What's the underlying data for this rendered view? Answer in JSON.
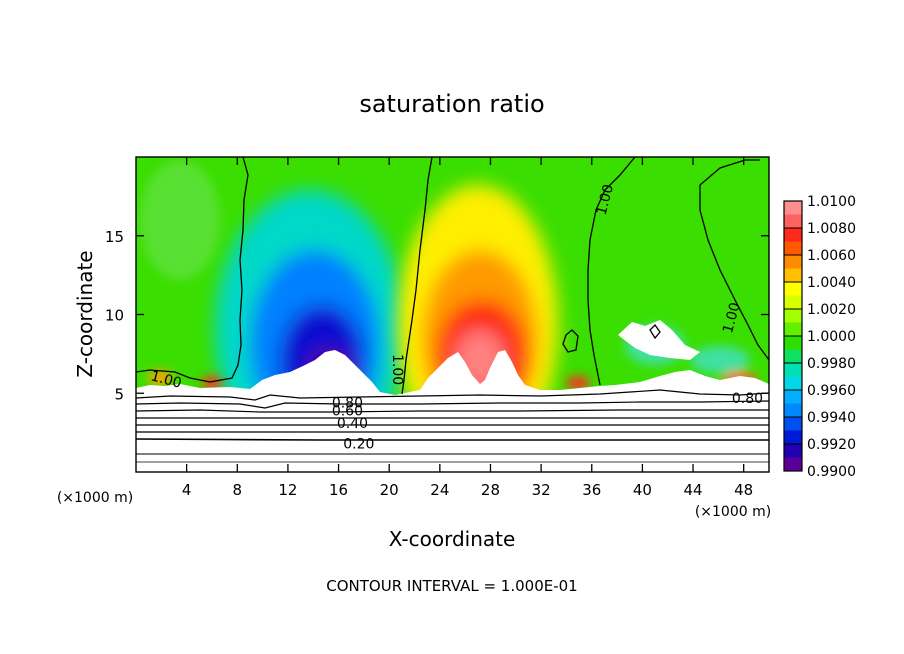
{
  "chart_data": {
    "type": "heatmap",
    "title": "saturation ratio",
    "xlabel": "X-coordinate",
    "ylabel": "Z-coordinate",
    "x_unit": "(×1000 m)",
    "x_ticks": [
      4,
      8,
      12,
      16,
      20,
      24,
      28,
      32,
      36,
      40,
      44,
      48
    ],
    "y_ticks": [
      5,
      10,
      15
    ],
    "xlim": [
      0,
      50
    ],
    "ylim": [
      0,
      20
    ],
    "footer": "CONTOUR INTERVAL = 1.000E-01",
    "colorbar": {
      "labels": [
        "1.0100",
        "1.0080",
        "1.0060",
        "1.0040",
        "1.0020",
        "1.0000",
        "0.9980",
        "0.9960",
        "0.9940",
        "0.9920",
        "0.9900"
      ],
      "colors": [
        "#ff8f8f",
        "#ff6060",
        "#ff2a1a",
        "#ff5a00",
        "#ff8c00",
        "#ffc000",
        "#ffff00",
        "#d8ff00",
        "#a4ff00",
        "#60f000",
        "#2de000",
        "#10e060",
        "#00e0b0",
        "#00d8e8",
        "#00b0ff",
        "#0088ff",
        "#0050f0",
        "#0018d8",
        "#2000b0",
        "#5a0098"
      ]
    },
    "contour_labels": [
      {
        "text": "1.00",
        "x": 2.4,
        "y": 5.9,
        "rot": 15
      },
      {
        "text": "1.00",
        "x": 20.7,
        "y": 6.5,
        "rot": 90
      },
      {
        "text": "1.00",
        "x": 37.0,
        "y": 17.3,
        "rot": -75
      },
      {
        "text": "1.00",
        "x": 47.0,
        "y": 9.8,
        "rot": -75
      },
      {
        "text": "0.80",
        "x": 16.7,
        "y": 4.4,
        "rot": 0
      },
      {
        "text": "0.60",
        "x": 16.7,
        "y": 3.9,
        "rot": 0
      },
      {
        "text": "0.40",
        "x": 17.1,
        "y": 3.1,
        "rot": 0
      },
      {
        "text": "0.20",
        "x": 17.6,
        "y": 1.8,
        "rot": 0
      },
      {
        "text": "0.80",
        "x": 48.3,
        "y": 4.7,
        "rot": 0
      }
    ]
  }
}
